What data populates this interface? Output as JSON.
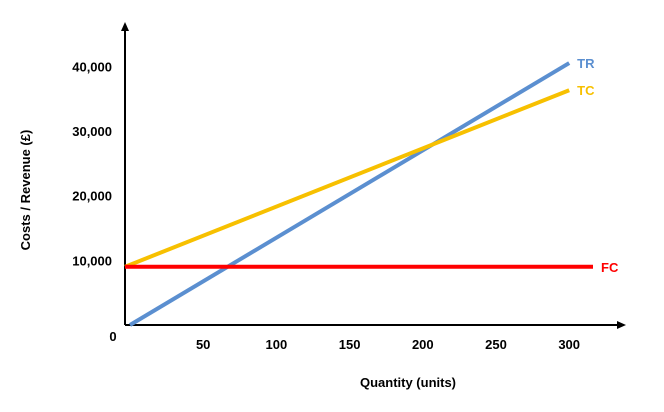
{
  "chart_data": {
    "type": "line",
    "title": "",
    "xlabel": "Quantity (units)",
    "ylabel": "Costs / Revenue (£)",
    "xlim": [
      0,
      330
    ],
    "ylim": [
      0,
      45000
    ],
    "x_ticks": [
      50,
      100,
      150,
      200,
      250,
      300
    ],
    "x_tick_labels": [
      "50",
      "100",
      "150",
      "200",
      "250",
      "300"
    ],
    "y_ticks": [
      10000,
      20000,
      30000,
      40000
    ],
    "y_tick_labels": [
      "10,000",
      "20,000",
      "30,000",
      "40,000"
    ],
    "origin_label": "0",
    "grid": false,
    "legend": "inline labels at line ends",
    "series": [
      {
        "name": "TR",
        "color": "#5b8fd0",
        "x": [
          0,
          300
        ],
        "y": [
          0,
          40500
        ]
      },
      {
        "name": "TC",
        "color": "#f7c000",
        "x": [
          0,
          300
        ],
        "y": [
          9000,
          36300
        ]
      },
      {
        "name": "FC",
        "color": "#ff0000",
        "x": [
          0,
          300
        ],
        "y": [
          9000,
          9000
        ]
      }
    ]
  }
}
